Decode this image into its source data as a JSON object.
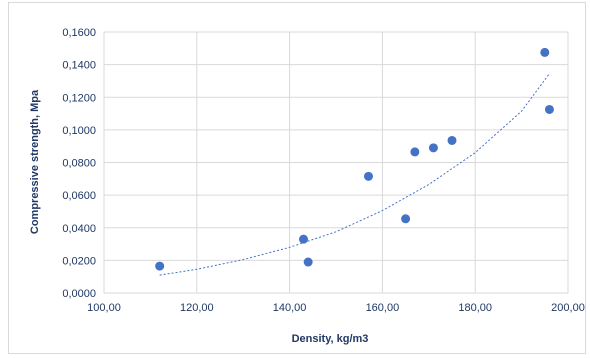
{
  "chart_data": {
    "type": "scatter",
    "title": "",
    "xlabel": "Density, kg/m3",
    "ylabel": "Compressive strength, Mpa",
    "xlim": [
      100,
      200
    ],
    "ylim": [
      0,
      0.16
    ],
    "x_ticks": [
      "100,00",
      "120,00",
      "140,00",
      "160,00",
      "180,00",
      "200,00"
    ],
    "y_ticks": [
      "0,0000",
      "0,0200",
      "0,0400",
      "0,0600",
      "0,0800",
      "0,1000",
      "0,1200",
      "0,1400",
      "0,1600"
    ],
    "grid": "vertical and horizontal",
    "legend": "none",
    "colors": {
      "points": "#4472c4",
      "trendline": "#4472c4",
      "grid": "#d9d9d9",
      "text": "#1f3864"
    },
    "series": [
      {
        "x": [
          112,
          143,
          144,
          157,
          165,
          167,
          171,
          175,
          195,
          196
        ],
        "y": [
          0.0165,
          0.033,
          0.019,
          0.0715,
          0.0455,
          0.0865,
          0.089,
          0.0935,
          0.1475,
          0.1125
        ]
      }
    ],
    "trendline": {
      "type": "polynomial",
      "x": [
        112,
        120,
        130,
        140,
        150,
        160,
        170,
        180,
        190,
        196
      ],
      "y": [
        0.011,
        0.0145,
        0.0205,
        0.028,
        0.0375,
        0.0505,
        0.0665,
        0.086,
        0.1115,
        0.1345
      ]
    }
  }
}
